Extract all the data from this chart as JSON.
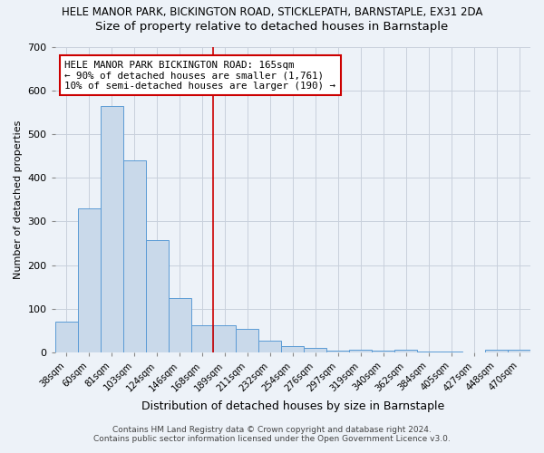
{
  "title": "HELE MANOR PARK, BICKINGTON ROAD, STICKLEPATH, BARNSTAPLE, EX31 2DA",
  "subtitle": "Size of property relative to detached houses in Barnstaple",
  "xlabel": "Distribution of detached houses by size in Barnstaple",
  "ylabel": "Number of detached properties",
  "categories": [
    "38sqm",
    "60sqm",
    "81sqm",
    "103sqm",
    "124sqm",
    "146sqm",
    "168sqm",
    "189sqm",
    "211sqm",
    "232sqm",
    "254sqm",
    "276sqm",
    "297sqm",
    "319sqm",
    "340sqm",
    "362sqm",
    "384sqm",
    "405sqm",
    "427sqm",
    "448sqm",
    "470sqm"
  ],
  "values": [
    70,
    330,
    565,
    440,
    258,
    125,
    62,
    63,
    53,
    28,
    15,
    10,
    5,
    6,
    5,
    6,
    2,
    2,
    0,
    7,
    6
  ],
  "bar_color": "#c9d9ea",
  "bar_edge_color": "#5b9bd5",
  "vline_x": 6.5,
  "vline_color": "#cc0000",
  "annotation_text": "HELE MANOR PARK BICKINGTON ROAD: 165sqm\n← 90% of detached houses are smaller (1,761)\n10% of semi-detached houses are larger (190) →",
  "annotation_box_color": "#ffffff",
  "annotation_box_edge": "#cc0000",
  "footer_line1": "Contains HM Land Registry data © Crown copyright and database right 2024.",
  "footer_line2": "Contains public sector information licensed under the Open Government Licence v3.0.",
  "ylim": [
    0,
    700
  ],
  "yticks": [
    0,
    100,
    200,
    300,
    400,
    500,
    600,
    700
  ],
  "grid_color": "#c8d0dc",
  "bg_color": "#edf2f8",
  "title_fontsize": 8.5,
  "subtitle_fontsize": 9.5,
  "footer_fontsize": 6.5,
  "ylabel_fontsize": 8,
  "xlabel_fontsize": 9
}
